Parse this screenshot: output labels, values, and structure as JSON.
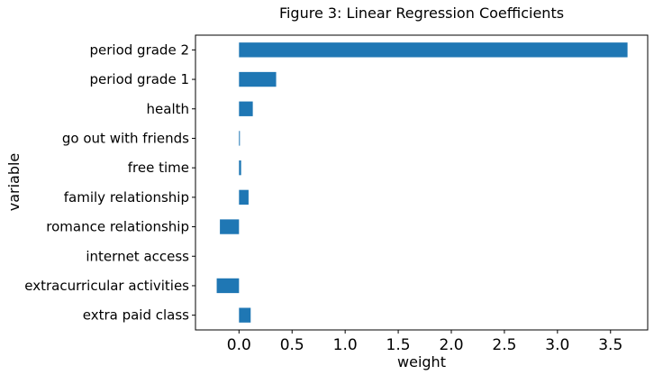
{
  "chart_data": {
    "type": "bar",
    "orientation": "horizontal",
    "title": "Figure 3: Linear Regression Coefficients",
    "xlabel": "weight",
    "ylabel": "variable",
    "categories": [
      "extra paid class",
      "extracurricular activities",
      "internet access",
      "romance relationship",
      "family relationship",
      "free time",
      "go out with friends",
      "health",
      "period grade 1",
      "period grade 2"
    ],
    "values": [
      0.11,
      -0.21,
      0.0,
      -0.18,
      0.09,
      0.02,
      0.005,
      0.13,
      0.35,
      3.66
    ],
    "xlim": [
      -0.41,
      3.85
    ],
    "xticks": [
      0.0,
      0.5,
      1.0,
      1.5,
      2.0,
      2.5,
      3.0,
      3.5
    ],
    "xtick_labels": [
      "0.0",
      "0.5",
      "1.0",
      "1.5",
      "2.0",
      "2.5",
      "3.0",
      "3.5"
    ],
    "grid": false,
    "legend": "none",
    "bar_color": "#1f77b4"
  }
}
